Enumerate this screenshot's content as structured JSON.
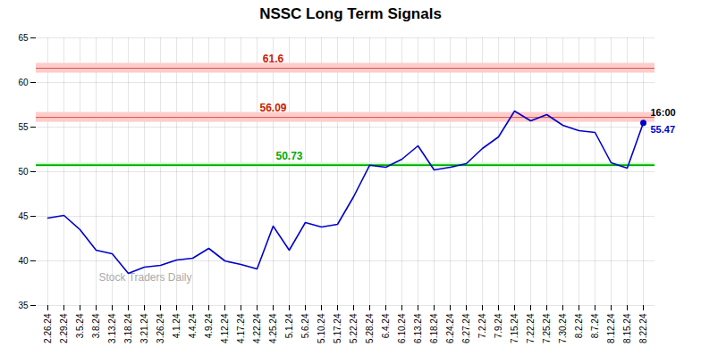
{
  "chart_data": {
    "type": "line",
    "title": "NSSC Long Term Signals",
    "categories": [
      "2.26.24",
      "2.29.24",
      "3.5.24",
      "3.8.24",
      "3.13.24",
      "3.18.24",
      "3.21.24",
      "3.26.24",
      "4.1.24",
      "4.4.24",
      "4.9.24",
      "4.12.24",
      "4.17.24",
      "4.22.24",
      "4.25.24",
      "5.1.24",
      "5.6.24",
      "5.10.24",
      "5.17.24",
      "5.22.24",
      "5.28.24",
      "6.4.24",
      "6.10.24",
      "6.13.24",
      "6.18.24",
      "6.24.24",
      "6.27.24",
      "7.2.24",
      "7.9.24",
      "7.15.24",
      "7.22.24",
      "7.25.24",
      "7.30.24",
      "8.2.24",
      "8.7.24",
      "8.12.24",
      "8.15.24",
      "8.22.24"
    ],
    "values": [
      44.8,
      45.1,
      43.5,
      41.2,
      40.8,
      38.6,
      39.3,
      39.5,
      40.1,
      40.3,
      41.4,
      40.0,
      39.6,
      39.1,
      43.9,
      41.2,
      44.3,
      43.8,
      44.1,
      47.2,
      50.73,
      50.5,
      51.4,
      52.9,
      50.2,
      50.5,
      50.9,
      52.6,
      53.9,
      56.8,
      55.7,
      56.4,
      55.2,
      54.6,
      54.4,
      51.0,
      50.4,
      55.47
    ],
    "color": "#0000cc",
    "ylim": [
      35,
      65
    ],
    "yticks": [
      35,
      40,
      45,
      50,
      55,
      60,
      65
    ],
    "grid": true,
    "hlines": [
      {
        "value": 50.73,
        "label": "50.73",
        "color": "#00aa00",
        "band_color": "#ccffcc"
      },
      {
        "value": 56.09,
        "label": "56.09",
        "color": "#cc2200",
        "band_color": "#ffcccc"
      },
      {
        "value": 61.6,
        "label": "61.6",
        "color": "#cc2200",
        "band_color": "#ffcccc"
      }
    ],
    "annotations": [
      {
        "text": "16:00",
        "color": "#000000"
      },
      {
        "text": "55.47",
        "color": "#0000cc"
      }
    ],
    "watermark": "Stock Traders Daily"
  }
}
